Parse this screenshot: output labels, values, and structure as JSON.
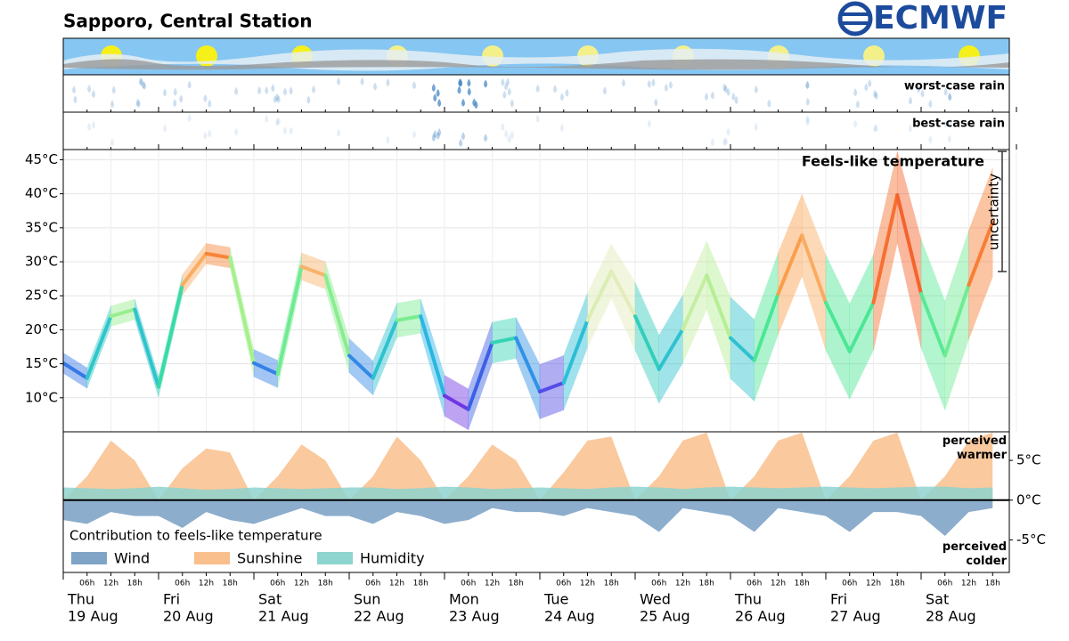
{
  "header": {
    "title": "Sapporo, Central Station",
    "logo": "ECMWF"
  },
  "panels": {
    "worst_rain": "worst-case rain",
    "best_rain": "best-case rain"
  },
  "chart_data": [
    {
      "type": "band-line",
      "title": "Feels-like temperature",
      "annotation": "uncertainty",
      "ylim": [
        5,
        46.5
      ],
      "yticks": [
        {
          "value": 10,
          "label": "10°C"
        },
        {
          "value": 15,
          "label": "15°C"
        },
        {
          "value": 20,
          "label": "20°C"
        },
        {
          "value": 25,
          "label": "25°C"
        },
        {
          "value": 30,
          "label": "30°C"
        },
        {
          "value": 35,
          "label": "35°C"
        },
        {
          "value": 40,
          "label": "40°C"
        },
        {
          "value": 45,
          "label": "45°C"
        }
      ],
      "grid": true,
      "values": [
        15.1,
        12.9,
        22,
        23,
        11.6,
        26.6,
        31.2,
        30.6,
        15.1,
        13.5,
        29.3,
        28,
        16.2,
        12.9,
        21.4,
        22,
        10.3,
        8.3,
        18.1,
        18.8,
        10.9,
        12.2,
        21.4,
        28.6,
        22,
        14.2,
        20.1,
        28,
        18.8,
        15.5,
        25.3,
        33.9,
        24,
        16.8,
        24,
        39.8,
        25.3,
        16.2,
        26.6,
        35.8
      ],
      "low": [
        13.6,
        11.4,
        20.5,
        21.5,
        10.1,
        25.1,
        29.7,
        29.1,
        13.1,
        11.5,
        27.3,
        26,
        13.7,
        10.4,
        18.9,
        19.5,
        7.3,
        5.3,
        15.1,
        15.8,
        6.9,
        8.2,
        17.4,
        24.6,
        17,
        9.2,
        15.1,
        23,
        12.8,
        9.5,
        19.3,
        27.9,
        17,
        9.8,
        17,
        32.8,
        17.3,
        8.2,
        18.6,
        27.8
      ],
      "high": [
        16.6,
        14.4,
        23.5,
        24.5,
        13.1,
        28.1,
        32.7,
        32.1,
        17.1,
        15.5,
        31.3,
        30,
        18.7,
        15.4,
        23.9,
        24.5,
        13.3,
        11.3,
        21.1,
        21.8,
        14.9,
        16.2,
        25.4,
        32.6,
        27,
        19.2,
        25.1,
        33,
        24.8,
        21.5,
        31.3,
        39.9,
        31,
        23.8,
        31,
        46.2,
        33.3,
        24.2,
        34.6,
        43.8
      ]
    },
    {
      "type": "area",
      "title": "Contribution to feels-like temperature",
      "annotations": [
        "perceived warmer",
        "perceived colder"
      ],
      "ylim": [
        -9.1,
        8.6
      ],
      "yticks": [
        {
          "value": -5,
          "label": "-5°C"
        },
        {
          "value": 0,
          "label": "0°C"
        },
        {
          "value": 5,
          "label": "5°C"
        }
      ],
      "days": [
        {
          "weekday": "Thu",
          "date": "19 Aug"
        },
        {
          "weekday": "Fri",
          "date": "20 Aug"
        },
        {
          "weekday": "Sat",
          "date": "21 Aug"
        },
        {
          "weekday": "Sun",
          "date": "22 Aug"
        },
        {
          "weekday": "Mon",
          "date": "23 Aug"
        },
        {
          "weekday": "Tue",
          "date": "24 Aug"
        },
        {
          "weekday": "Wed",
          "date": "25 Aug"
        },
        {
          "weekday": "Thu",
          "date": "26 Aug"
        },
        {
          "weekday": "Fri",
          "date": "27 Aug"
        },
        {
          "weekday": "Sat",
          "date": "28 Aug"
        }
      ],
      "hours": [
        "06h",
        "12h",
        "18h"
      ],
      "series": [
        {
          "name": "Wind",
          "color": "#7fa4c6",
          "values": [
            -2.5,
            -3,
            -1.5,
            -2,
            -2,
            -3.5,
            -1.5,
            -2.5,
            -3,
            -2,
            -1,
            -2,
            -2,
            -3,
            -1.5,
            -2,
            -3,
            -2.5,
            -1,
            -1.5,
            -1.5,
            -2,
            -1,
            -1.5,
            -2,
            -4,
            -1,
            -1.5,
            -2,
            -4,
            -1,
            -1.5,
            -2,
            -4,
            -1.5,
            -1.5,
            -2,
            -4.5,
            -1.5,
            -1
          ]
        },
        {
          "name": "Sunshine",
          "color": "#f9bf8c",
          "values": [
            0,
            3,
            7.5,
            5,
            0,
            4,
            6.5,
            6,
            0,
            3,
            7,
            5,
            0,
            3,
            8,
            5,
            0,
            3,
            7,
            5,
            0,
            3.5,
            7.5,
            8,
            0,
            3,
            7.5,
            8.5,
            0,
            3,
            7.5,
            8.5,
            0,
            3,
            7.5,
            8.5,
            0,
            3,
            7.5,
            8.5
          ]
        },
        {
          "name": "Humidity",
          "color": "#8ed4cf",
          "values": [
            1.6,
            1.5,
            1.4,
            1.5,
            1.7,
            1.5,
            1.3,
            1.4,
            1.6,
            1.5,
            1.4,
            1.5,
            1.6,
            1.6,
            1.4,
            1.5,
            1.7,
            1.6,
            1.4,
            1.5,
            1.6,
            1.5,
            1.4,
            1.6,
            1.7,
            1.6,
            1.4,
            1.6,
            1.7,
            1.6,
            1.5,
            1.6,
            1.7,
            1.6,
            1.5,
            1.6,
            1.7,
            1.7,
            1.5,
            1.6
          ]
        }
      ]
    }
  ]
}
